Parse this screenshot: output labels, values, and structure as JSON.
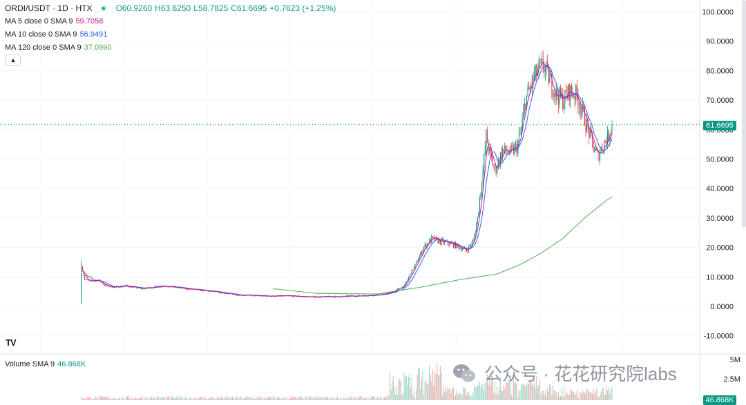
{
  "header": {
    "symbol": "ORDI/USDT · 1D · HTX",
    "open": "O60.9260",
    "high": "H63.6250",
    "low": "L58.7825",
    "close": "C61.6695",
    "change": "+0.7623 (+1.25%)"
  },
  "indicators": [
    {
      "label": "MA 5 close 0 SMA 9",
      "value": "59.7058",
      "color": "#c5168d"
    },
    {
      "label": "MA 10 close 0 SMA 9",
      "value": "56.9491",
      "color": "#2962ff"
    },
    {
      "label": "MA 120 close 0 SMA 9",
      "value": "37.0990",
      "color": "#4caf50"
    }
  ],
  "volume": {
    "label": "Volume SMA 9",
    "value": "46.868K",
    "axis_5m": "5M",
    "axis_2_5m": "2.5M",
    "tag": "46.868K"
  },
  "price_tag": "61.6695",
  "logo_text": "TV",
  "watermark": "公众号 · 花花研究院labs",
  "colors": {
    "up": "#089981",
    "down": "#f23645",
    "up_vol": "#a3d9c9",
    "down_vol": "#f7a9a7"
  },
  "chart_data": {
    "type": "candlestick",
    "y_ticks": [
      "100.0000",
      "90.0000",
      "80.0000",
      "70.0000",
      "60.0000",
      "50.0000",
      "40.0000",
      "30.0000",
      "20.0000",
      "10.0000",
      "0.0000",
      "-10.0000"
    ],
    "ylim": [
      -12,
      103
    ],
    "current_price": 61.6695,
    "grid": true,
    "approx_close_path": [
      [
        0,
        14
      ],
      [
        3,
        9
      ],
      [
        8,
        8.5
      ],
      [
        15,
        9
      ],
      [
        22,
        7
      ],
      [
        30,
        6.5
      ],
      [
        40,
        7
      ],
      [
        55,
        6
      ],
      [
        75,
        7
      ],
      [
        95,
        6
      ],
      [
        120,
        5
      ],
      [
        140,
        4
      ],
      [
        165,
        3.5
      ],
      [
        190,
        3.5
      ],
      [
        210,
        3.2
      ],
      [
        235,
        3.3
      ],
      [
        255,
        3.6
      ],
      [
        275,
        4
      ],
      [
        285,
        5
      ],
      [
        295,
        7
      ],
      [
        305,
        14
      ],
      [
        313,
        20
      ],
      [
        320,
        23
      ],
      [
        328,
        22
      ],
      [
        340,
        21
      ],
      [
        352,
        19
      ],
      [
        358,
        22
      ],
      [
        362,
        30
      ],
      [
        367,
        46
      ],
      [
        370,
        58
      ],
      [
        373,
        52
      ],
      [
        378,
        46
      ],
      [
        385,
        53
      ],
      [
        392,
        52
      ],
      [
        398,
        54
      ],
      [
        402,
        60
      ],
      [
        406,
        70
      ],
      [
        410,
        74
      ],
      [
        414,
        78
      ],
      [
        418,
        80
      ],
      [
        422,
        82
      ],
      [
        428,
        77
      ],
      [
        434,
        72
      ],
      [
        440,
        70
      ],
      [
        446,
        73
      ],
      [
        452,
        72
      ],
      [
        458,
        66
      ],
      [
        463,
        60
      ],
      [
        468,
        54
      ],
      [
        472,
        51
      ],
      [
        477,
        55
      ],
      [
        482,
        58
      ],
      [
        485,
        61.67
      ]
    ],
    "ma120_path": [
      [
        175,
        6
      ],
      [
        215,
        4.4
      ],
      [
        270,
        4.2
      ],
      [
        310,
        6.5
      ],
      [
        345,
        9
      ],
      [
        380,
        11
      ],
      [
        400,
        14
      ],
      [
        420,
        18
      ],
      [
        440,
        23
      ],
      [
        460,
        30
      ],
      [
        480,
        36
      ],
      [
        485,
        37.1
      ]
    ]
  }
}
